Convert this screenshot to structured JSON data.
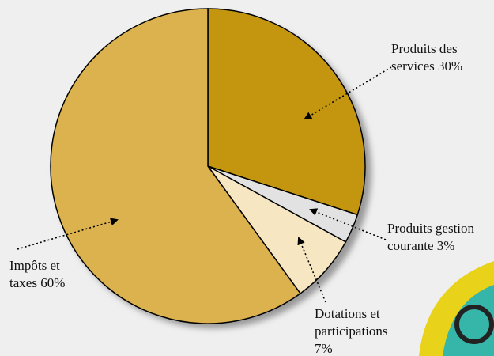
{
  "chart_data": {
    "type": "pie",
    "categories": [
      "Produits des services",
      "Produits gestion courante",
      "Dotations et participations",
      "Impôts et taxes"
    ],
    "values": [
      30,
      3,
      7,
      60
    ],
    "value_labels": [
      "30%",
      "3%",
      "7%",
      "60%"
    ],
    "colors": [
      "#c4960f",
      "#e2e2e2",
      "#f6e7c2",
      "#dcb24e"
    ]
  }
}
